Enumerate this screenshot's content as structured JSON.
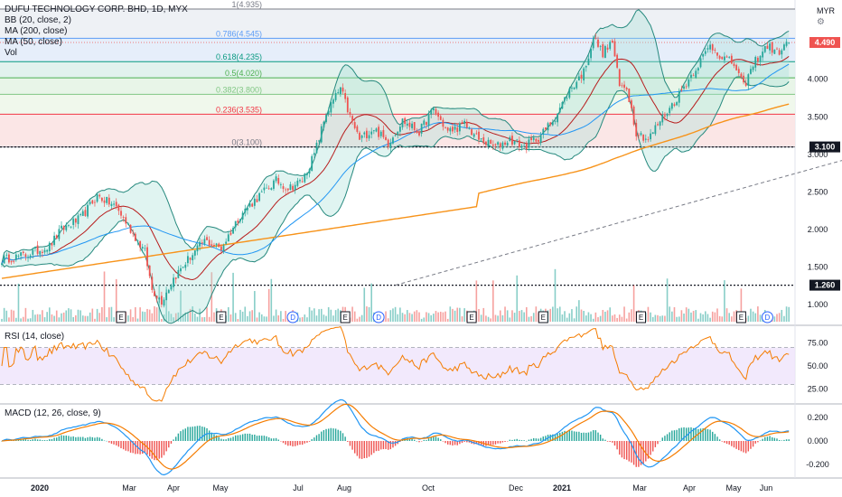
{
  "header": {
    "title": "DUFU TECHNOLOGY CORP. BHD, 1D, MYX",
    "currency": "MYR"
  },
  "legends": {
    "main": [
      "BB (20, close, 2)",
      "MA (200, close)",
      "MA (50, close)",
      "Vol"
    ],
    "rsi": "RSI (14, close)",
    "macd": "MACD (12, 26, close, 9)"
  },
  "colors": {
    "up": "#26a69a",
    "down": "#ef5350",
    "ma200": "#f7931a",
    "ma50": "#2196f3",
    "bb": "#26897e",
    "bbFill": "#a5e0d6",
    "rsi": "#f57c00",
    "rsiBand": "#efe3fb",
    "macd": "#2196f3",
    "signal": "#f57c00",
    "badge": "#131722"
  },
  "chart_data": {
    "type": "candlestick",
    "price_axis": {
      "min": 0.75,
      "max": 4.935,
      "ticks": [
        "4.000",
        "3.500",
        "3.000",
        "2.500",
        "2.000",
        "1.500",
        "1.000"
      ]
    },
    "time_axis": [
      "2020",
      "Mar",
      "Apr",
      "May",
      "Jul",
      "Aug",
      "Oct",
      "Dec",
      "2021",
      "Mar",
      "Apr",
      "May",
      "Jun"
    ],
    "fibonacci": [
      {
        "label": "1(4.935)",
        "level": 4.935,
        "color": "#787b86"
      },
      {
        "label": "0.786(4.545)",
        "level": 4.545,
        "color": "#5b9cf6"
      },
      {
        "label": "0.618(4.235)",
        "level": 4.235,
        "color": "#089981"
      },
      {
        "label": "0.5(4.020)",
        "level": 4.02,
        "color": "#4caf50"
      },
      {
        "label": "0.382(3.800)",
        "level": 3.8,
        "color": "#81c784"
      },
      {
        "label": "0.236(3.535)",
        "level": 3.535,
        "color": "#f23645"
      },
      {
        "label": "0(3.100)",
        "level": 3.1,
        "color": "#787b86"
      }
    ],
    "price_path": [
      [
        0,
        1.6
      ],
      [
        10,
        1.66
      ],
      [
        20,
        1.78
      ],
      [
        25,
        2.0
      ],
      [
        33,
        2.15
      ],
      [
        40,
        2.45
      ],
      [
        48,
        2.3
      ],
      [
        55,
        1.95
      ],
      [
        60,
        1.7
      ],
      [
        63,
        1.2
      ],
      [
        67,
        1.05
      ],
      [
        72,
        1.35
      ],
      [
        78,
        1.6
      ],
      [
        85,
        1.85
      ],
      [
        92,
        1.75
      ],
      [
        100,
        2.2
      ],
      [
        108,
        2.45
      ],
      [
        115,
        2.65
      ],
      [
        120,
        2.55
      ],
      [
        126,
        2.65
      ],
      [
        131,
        3.0
      ],
      [
        136,
        3.55
      ],
      [
        142,
        3.88
      ],
      [
        146,
        3.5
      ],
      [
        150,
        3.2
      ],
      [
        156,
        3.35
      ],
      [
        162,
        3.15
      ],
      [
        168,
        3.45
      ],
      [
        175,
        3.3
      ],
      [
        181,
        3.6
      ],
      [
        187,
        3.3
      ],
      [
        194,
        3.4
      ],
      [
        200,
        3.2
      ],
      [
        207,
        3.1
      ],
      [
        213,
        3.2
      ],
      [
        219,
        3.1
      ],
      [
        226,
        3.25
      ],
      [
        232,
        3.5
      ],
      [
        238,
        3.85
      ],
      [
        244,
        4.1
      ],
      [
        248,
        4.55
      ],
      [
        252,
        4.35
      ],
      [
        256,
        4.5
      ],
      [
        259,
        3.9
      ],
      [
        262,
        3.9
      ],
      [
        266,
        3.3
      ],
      [
        271,
        3.2
      ],
      [
        276,
        3.45
      ],
      [
        282,
        3.7
      ],
      [
        288,
        4.0
      ],
      [
        293,
        4.25
      ],
      [
        297,
        4.45
      ],
      [
        302,
        4.3
      ],
      [
        307,
        4.2
      ],
      [
        311,
        3.9
      ],
      [
        316,
        4.25
      ],
      [
        321,
        4.45
      ],
      [
        325,
        4.35
      ],
      [
        330,
        4.49
      ]
    ],
    "support_lines": [
      3.1,
      1.26
    ],
    "badges": {
      "last": "4.490",
      "fib_zero": "3.100",
      "support": "1.260"
    },
    "events": [
      {
        "bar": 50,
        "type": "E"
      },
      {
        "bar": 92,
        "type": "E"
      },
      {
        "bar": 122,
        "type": "D"
      },
      {
        "bar": 144,
        "type": "E"
      },
      {
        "bar": 158,
        "type": "D"
      },
      {
        "bar": 197,
        "type": "E"
      },
      {
        "bar": 227,
        "type": "E"
      },
      {
        "bar": 268,
        "type": "E"
      },
      {
        "bar": 310,
        "type": "E"
      },
      {
        "bar": 321,
        "type": "D"
      }
    ],
    "rsi": {
      "min": 10,
      "max": 92,
      "ticks": [
        "75.00",
        "50.00",
        "25.00"
      ],
      "band": [
        30,
        70
      ]
    },
    "macd": {
      "min": -0.31,
      "max": 0.31,
      "ticks": [
        "0.200",
        "0.000",
        "-0.200"
      ]
    }
  }
}
